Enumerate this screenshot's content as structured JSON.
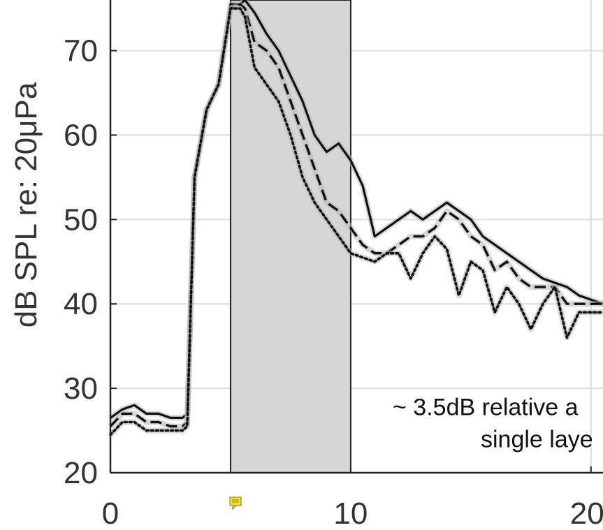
{
  "chart_data": {
    "type": "line",
    "title": "",
    "xlabel": "",
    "ylabel": "dB SPL re: 20μPa",
    "xlim": [
      0,
      20.5
    ],
    "ylim": [
      20,
      76
    ],
    "xticks": [
      "0",
      "10",
      "20"
    ],
    "xtick_values": [
      0,
      10,
      20
    ],
    "yticks": [
      "20",
      "30",
      "40",
      "50",
      "60",
      "70"
    ],
    "ytick_values": [
      20,
      30,
      40,
      50,
      60,
      70
    ],
    "grid": true,
    "shaded_region": {
      "x": [
        5,
        10
      ],
      "color": "#d6d6d6"
    },
    "annotation": {
      "lines": [
        "~ 3.5dB relative a",
        "single laye"
      ],
      "x": 20.5,
      "y": 27.8
    },
    "series": [
      {
        "style": "solid",
        "color": "#111111",
        "x": [
          0,
          0.5,
          1,
          1.5,
          2,
          2.5,
          3,
          3.2,
          3.5,
          4,
          4.5,
          5,
          5.4,
          5.6,
          6,
          6.5,
          7,
          7.5,
          8,
          8.5,
          9,
          9.5,
          10,
          10.5,
          11,
          11.5,
          12,
          12.5,
          13,
          13.5,
          14,
          14.5,
          15,
          15.5,
          16,
          16.5,
          17,
          17.5,
          18,
          18.5,
          19,
          19.5,
          20,
          20.5
        ],
        "y": [
          26.5,
          27.5,
          28,
          27,
          27,
          26.5,
          26.5,
          27,
          55,
          63,
          66,
          75.5,
          75.5,
          76,
          74.5,
          72,
          70,
          67,
          64,
          60,
          58,
          59,
          57,
          54,
          48,
          49,
          50,
          51,
          50,
          51,
          52,
          51,
          50,
          48,
          47,
          46,
          45,
          44,
          43,
          42.5,
          42,
          41,
          40.5,
          40
        ]
      },
      {
        "style": "dashed",
        "color": "#111111",
        "x": [
          0,
          0.5,
          1,
          1.5,
          2,
          2.5,
          3,
          3.2,
          3.5,
          4,
          4.5,
          5,
          5.4,
          5.6,
          6,
          6.5,
          7,
          7.5,
          8,
          8.5,
          9,
          9.5,
          10,
          10.5,
          11,
          11.5,
          12,
          12.5,
          13,
          13.5,
          14,
          14.5,
          15,
          15.5,
          16,
          16.5,
          17,
          17.5,
          18,
          18.5,
          19,
          19.5,
          20,
          20.5
        ],
        "y": [
          25.5,
          27,
          27,
          26,
          26,
          25.5,
          25.5,
          26,
          55,
          63,
          66,
          75,
          75.5,
          75,
          71,
          70,
          68,
          64,
          60,
          56,
          52,
          51,
          49,
          47,
          46,
          46,
          47,
          48,
          48,
          49,
          51,
          50,
          48,
          47,
          44,
          45,
          43,
          42,
          42,
          42,
          40,
          40,
          40,
          40
        ]
      },
      {
        "style": "dotted",
        "color": "#111111",
        "x": [
          0,
          0.5,
          1,
          1.5,
          2,
          2.5,
          3,
          3.2,
          3.5,
          4,
          4.5,
          5,
          5.4,
          5.6,
          6,
          6.5,
          7,
          7.5,
          8,
          8.5,
          9,
          9.5,
          10,
          10.5,
          11,
          11.5,
          12,
          12.5,
          13,
          13.5,
          14,
          14.5,
          15,
          15.5,
          16,
          16.5,
          17,
          17.5,
          18,
          18.5,
          19,
          19.5,
          20,
          20.5
        ],
        "y": [
          24.5,
          26,
          26,
          25,
          25,
          25,
          25,
          25.5,
          55,
          63,
          66,
          75,
          75,
          74,
          68,
          66,
          64,
          60,
          55,
          52,
          50,
          48,
          46,
          45.5,
          45,
          46,
          46,
          43,
          46,
          48,
          46.5,
          41,
          45,
          44,
          39,
          42,
          40,
          37,
          40,
          42,
          36,
          39,
          39,
          39
        ]
      }
    ]
  }
}
